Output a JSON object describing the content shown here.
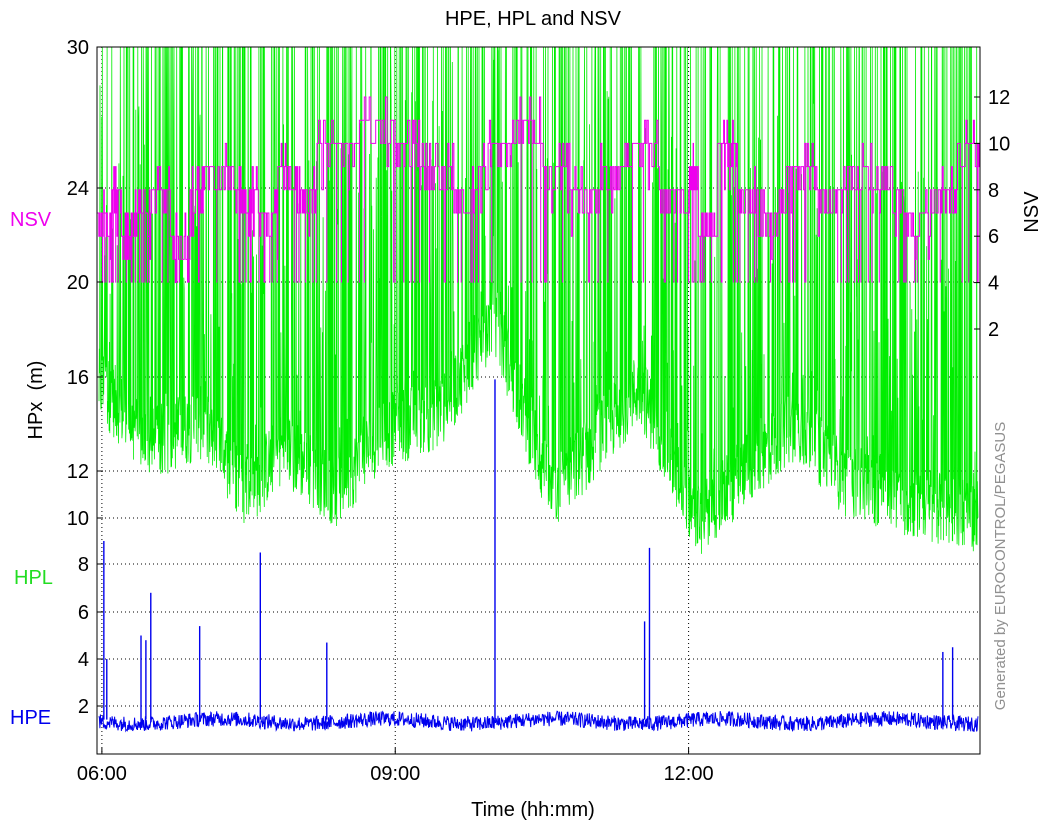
{
  "chart_data": {
    "type": "line",
    "title": "HPE, HPL and NSV",
    "xlabel": "Time (hh:mm)",
    "ylabel_left": "HPx  (m)",
    "ylabel_right": "NSV",
    "watermark": "Generated by EUROCONTROL/PEGASUS",
    "x_range_hours": [
      5.95,
      14.98
    ],
    "x_ticks": [
      {
        "hour": 6,
        "label": "06:00"
      },
      {
        "hour": 9,
        "label": "09:00"
      },
      {
        "hour": 12,
        "label": "12:00"
      }
    ],
    "y_left_ticks": [
      {
        "value": 2,
        "label": "2"
      },
      {
        "value": 4,
        "label": "4"
      },
      {
        "value": 6,
        "label": "6"
      },
      {
        "value": 8,
        "label": "8"
      },
      {
        "value": 10,
        "label": "10"
      },
      {
        "value": 12,
        "label": "12"
      },
      {
        "value": 16,
        "label": "16"
      },
      {
        "value": 20,
        "label": "20"
      },
      {
        "value": 24,
        "label": "24"
      },
      {
        "value": 30,
        "label": "30"
      }
    ],
    "y_right_ticks": [
      {
        "value": 2,
        "label": "2"
      },
      {
        "value": 4,
        "label": "4"
      },
      {
        "value": 6,
        "label": "6"
      },
      {
        "value": 8,
        "label": "8"
      },
      {
        "value": 10,
        "label": "10"
      },
      {
        "value": 12,
        "label": "12"
      }
    ],
    "grid": true,
    "series": [
      {
        "name": "HPE",
        "color": "#0000ee",
        "axis": "left",
        "baseline_m": 1.1,
        "spikes": [
          [
            6.02,
            9.0
          ],
          [
            6.05,
            4.0
          ],
          [
            6.4,
            5.0
          ],
          [
            6.45,
            4.8
          ],
          [
            6.5,
            6.8
          ],
          [
            7.0,
            5.4
          ],
          [
            7.62,
            8.5
          ],
          [
            8.3,
            4.7
          ],
          [
            10.02,
            15.9
          ],
          [
            11.55,
            5.6
          ],
          [
            11.6,
            8.7
          ],
          [
            14.6,
            4.3
          ],
          [
            14.7,
            4.5
          ]
        ]
      },
      {
        "name": "HPL",
        "color": "#00ee00",
        "axis": "left",
        "envelope_hours": [
          6.0,
          6.5,
          7.0,
          7.5,
          7.85,
          8.4,
          8.85,
          9.5,
          10.0,
          10.6,
          11.5,
          12.1,
          12.6,
          13.1,
          13.6,
          14.2,
          14.95
        ],
        "envelope_min_m": [
          14.0,
          11.5,
          12.5,
          9.5,
          11.5,
          9.5,
          12.0,
          13.0,
          17.0,
          9.3,
          14.0,
          8.2,
          10.5,
          12.5,
          10.0,
          9.2,
          8.5
        ]
      },
      {
        "name": "NSV",
        "color": "#ee00ee",
        "axis": "right",
        "steps": [
          [
            5.95,
            7
          ],
          [
            6.1,
            8
          ],
          [
            6.2,
            6
          ],
          [
            6.3,
            7
          ],
          [
            6.5,
            8
          ],
          [
            6.7,
            6
          ],
          [
            6.9,
            8
          ],
          [
            7.05,
            9
          ],
          [
            7.35,
            8
          ],
          [
            7.6,
            7
          ],
          [
            7.8,
            9
          ],
          [
            8.0,
            8
          ],
          [
            8.2,
            10
          ],
          [
            8.6,
            11
          ],
          [
            9.0,
            10
          ],
          [
            9.3,
            9
          ],
          [
            9.6,
            8
          ],
          [
            9.9,
            10
          ],
          [
            10.2,
            11
          ],
          [
            10.5,
            9
          ],
          [
            10.8,
            8
          ],
          [
            11.1,
            9
          ],
          [
            11.4,
            10
          ],
          [
            11.7,
            8
          ],
          [
            12.0,
            9
          ],
          [
            12.1,
            7
          ],
          [
            12.3,
            10
          ],
          [
            12.5,
            8
          ],
          [
            12.7,
            7
          ],
          [
            13.0,
            9
          ],
          [
            13.3,
            8
          ],
          [
            13.6,
            9
          ],
          [
            13.9,
            8
          ],
          [
            14.2,
            7
          ],
          [
            14.5,
            8
          ],
          [
            14.75,
            10
          ],
          [
            14.98,
            9
          ]
        ]
      }
    ]
  }
}
